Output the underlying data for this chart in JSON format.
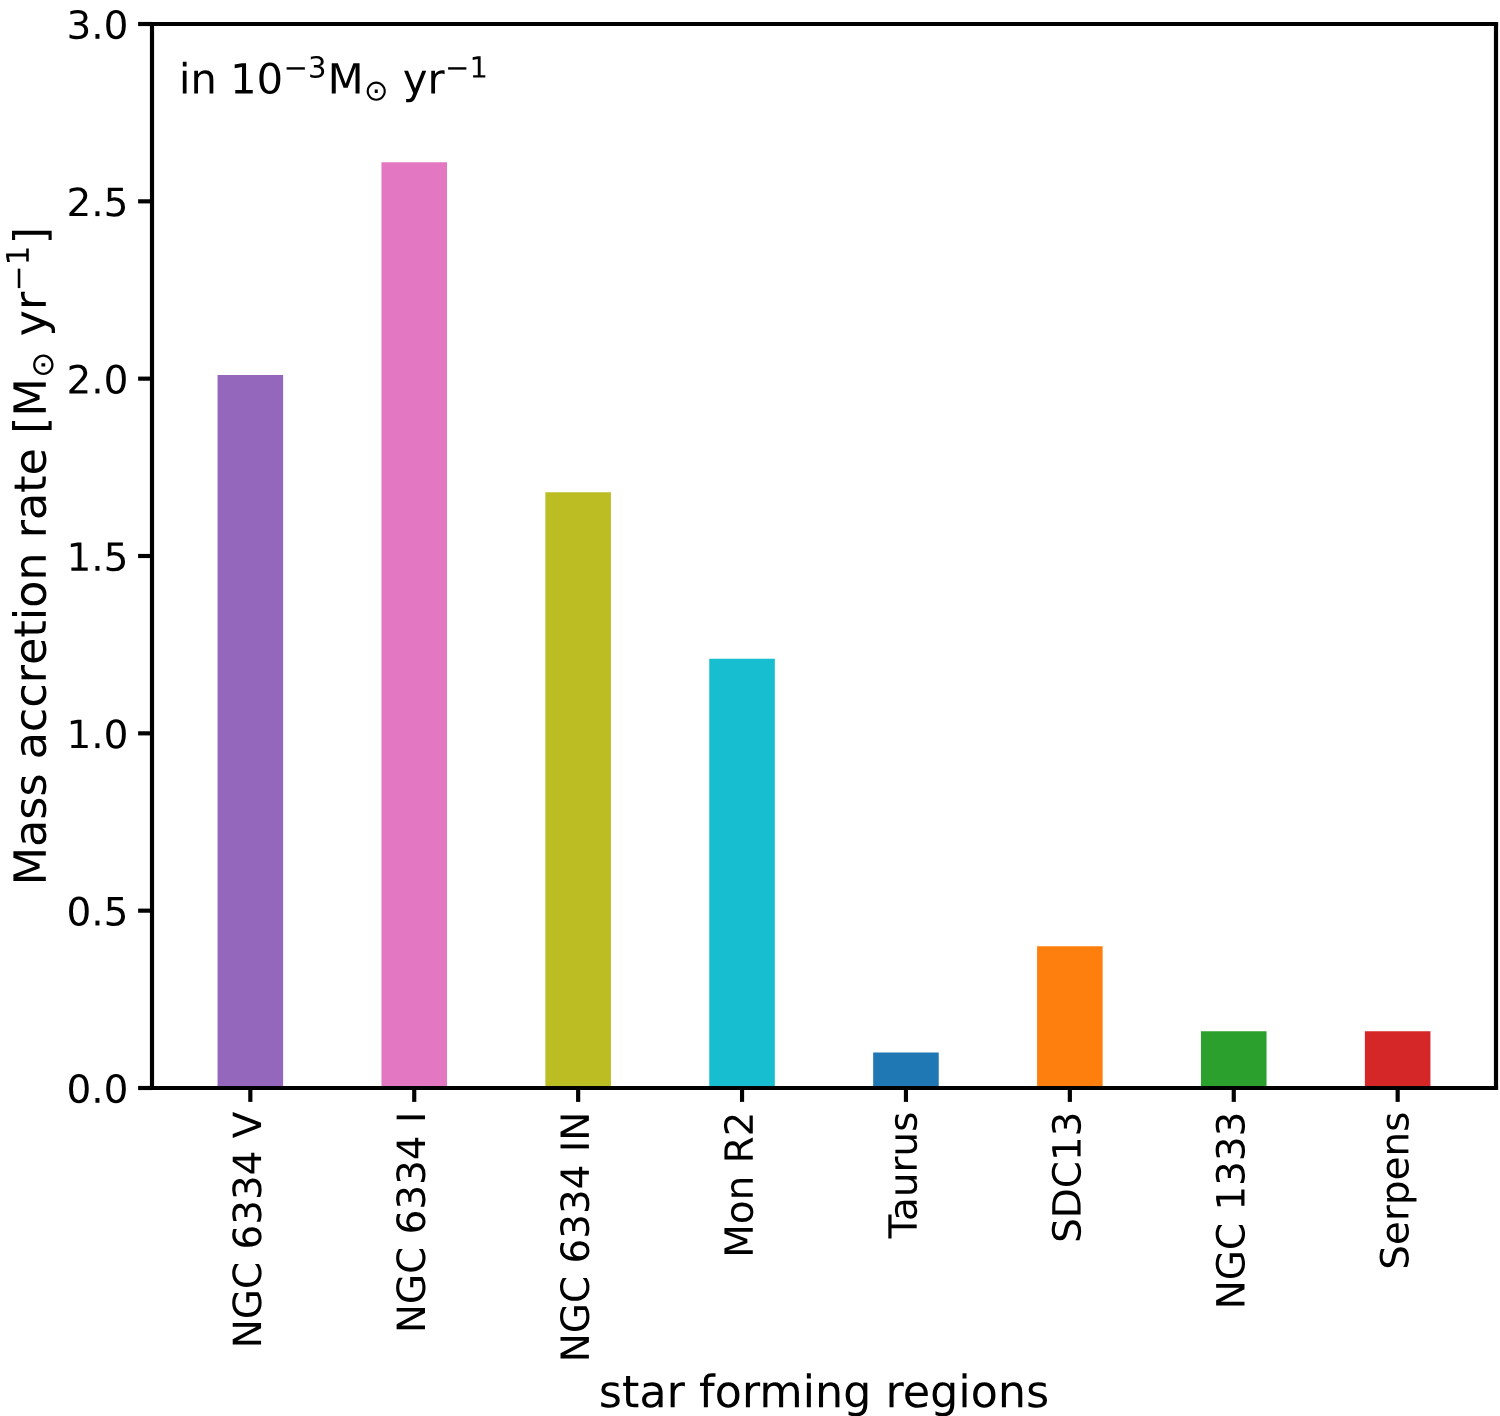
{
  "chart_data": {
    "type": "bar",
    "categories": [
      "NGC 6334 V",
      "NGC 6334 I",
      "NGC 6334 IN",
      "Mon R2",
      "Taurus",
      "SDC13",
      "NGC 1333",
      "Serpens"
    ],
    "values": [
      2.01,
      2.61,
      1.68,
      1.21,
      0.1,
      0.4,
      0.16,
      0.16
    ],
    "colors": [
      "#9467bd",
      "#e377c2",
      "#bcbd22",
      "#17becf",
      "#1f77b4",
      "#ff7f0e",
      "#2ca02c",
      "#d62728"
    ],
    "xlabel": "star forming regions",
    "ylabel": "Mass accretion rate [M$_{⊙}$ yr$^{−1}$]",
    "annotations": [
      "in 10$^{−3}$M$_{⊙}$ yr$^{−1}$"
    ],
    "ylim": [
      0,
      3.0
    ],
    "yticks": [
      {
        "value": 0,
        "label": "0.0"
      },
      0.5,
      {
        "value": 1,
        "label": "1.0"
      },
      1.5,
      {
        "value": 2,
        "label": "2.0"
      },
      2.5,
      {
        "value": 3,
        "label": "3.0"
      }
    ],
    "grid": false,
    "legend": false
  }
}
